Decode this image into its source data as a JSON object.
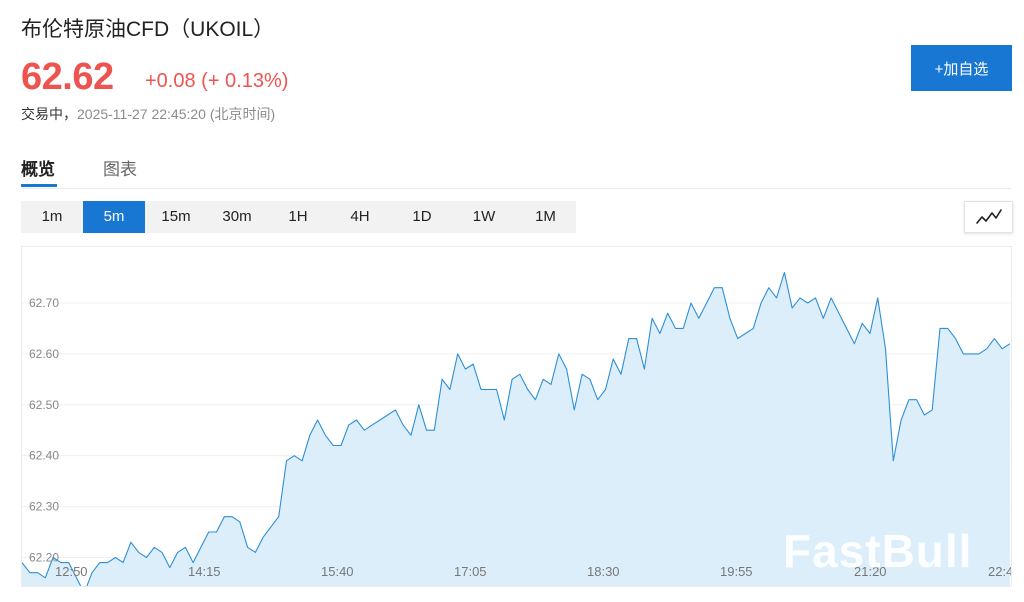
{
  "header": {
    "title": "布伦特原油CFD（UKOIL）",
    "price": "62.62",
    "change": "+0.08 (+ 0.13%)",
    "status": "交易中，",
    "timestamp": "2025-11-27 22:45:20 (北京时间)",
    "add_button": "+加自选"
  },
  "tabs": [
    {
      "label": "概览",
      "active": true
    },
    {
      "label": "图表",
      "active": false
    }
  ],
  "intervals": [
    {
      "label": "1m",
      "active": false
    },
    {
      "label": "5m",
      "active": true
    },
    {
      "label": "15m",
      "active": false
    },
    {
      "label": "30m",
      "active": false
    },
    {
      "label": "1H",
      "active": false
    },
    {
      "label": "4H",
      "active": false
    },
    {
      "label": "1D",
      "active": false
    },
    {
      "label": "1W",
      "active": false
    },
    {
      "label": "1M",
      "active": false
    }
  ],
  "chart_type_icon": "line-chart-icon",
  "watermark": "FastBull",
  "colors": {
    "accent": "#1877d2",
    "up": "#ef5350",
    "line": "#2d8fd6",
    "fill": "#ddeefb"
  },
  "chart_data": {
    "type": "area",
    "y_ticks": [
      "62.70",
      "62.60",
      "62.50",
      "62.40",
      "62.30",
      "62.20"
    ],
    "x_ticks": [
      "12:50",
      "14:15",
      "15:40",
      "17:05",
      "18:30",
      "19:55",
      "21:20",
      "22:4"
    ],
    "ylim": [
      62.14,
      62.81
    ],
    "grid": true,
    "values": [
      62.19,
      62.17,
      62.17,
      62.16,
      62.2,
      62.19,
      62.19,
      62.16,
      62.13,
      62.17,
      62.19,
      62.19,
      62.2,
      62.19,
      62.23,
      62.21,
      62.2,
      62.22,
      62.21,
      62.18,
      62.21,
      62.22,
      62.19,
      62.22,
      62.25,
      62.25,
      62.28,
      62.28,
      62.27,
      62.22,
      62.21,
      62.24,
      62.26,
      62.28,
      62.39,
      62.4,
      62.39,
      62.44,
      62.47,
      62.44,
      62.42,
      62.42,
      62.46,
      62.47,
      62.45,
      62.46,
      62.47,
      62.48,
      62.49,
      62.46,
      62.44,
      62.5,
      62.45,
      62.45,
      62.55,
      62.53,
      62.6,
      62.57,
      62.58,
      62.53,
      62.53,
      62.53,
      62.47,
      62.55,
      62.56,
      62.53,
      62.51,
      62.55,
      62.54,
      62.6,
      62.57,
      62.49,
      62.56,
      62.55,
      62.51,
      62.53,
      62.59,
      62.56,
      62.63,
      62.63,
      62.57,
      62.67,
      62.64,
      62.68,
      62.65,
      62.65,
      62.7,
      62.67,
      62.7,
      62.73,
      62.73,
      62.67,
      62.63,
      62.64,
      62.65,
      62.7,
      62.73,
      62.71,
      62.76,
      62.69,
      62.71,
      62.7,
      62.71,
      62.67,
      62.71,
      62.68,
      62.65,
      62.62,
      62.66,
      62.64,
      62.71,
      62.61,
      62.39,
      62.47,
      62.51,
      62.51,
      62.48,
      62.49,
      62.65,
      62.65,
      62.63,
      62.6,
      62.6,
      62.6,
      62.61,
      62.63,
      62.61,
      62.62
    ]
  }
}
